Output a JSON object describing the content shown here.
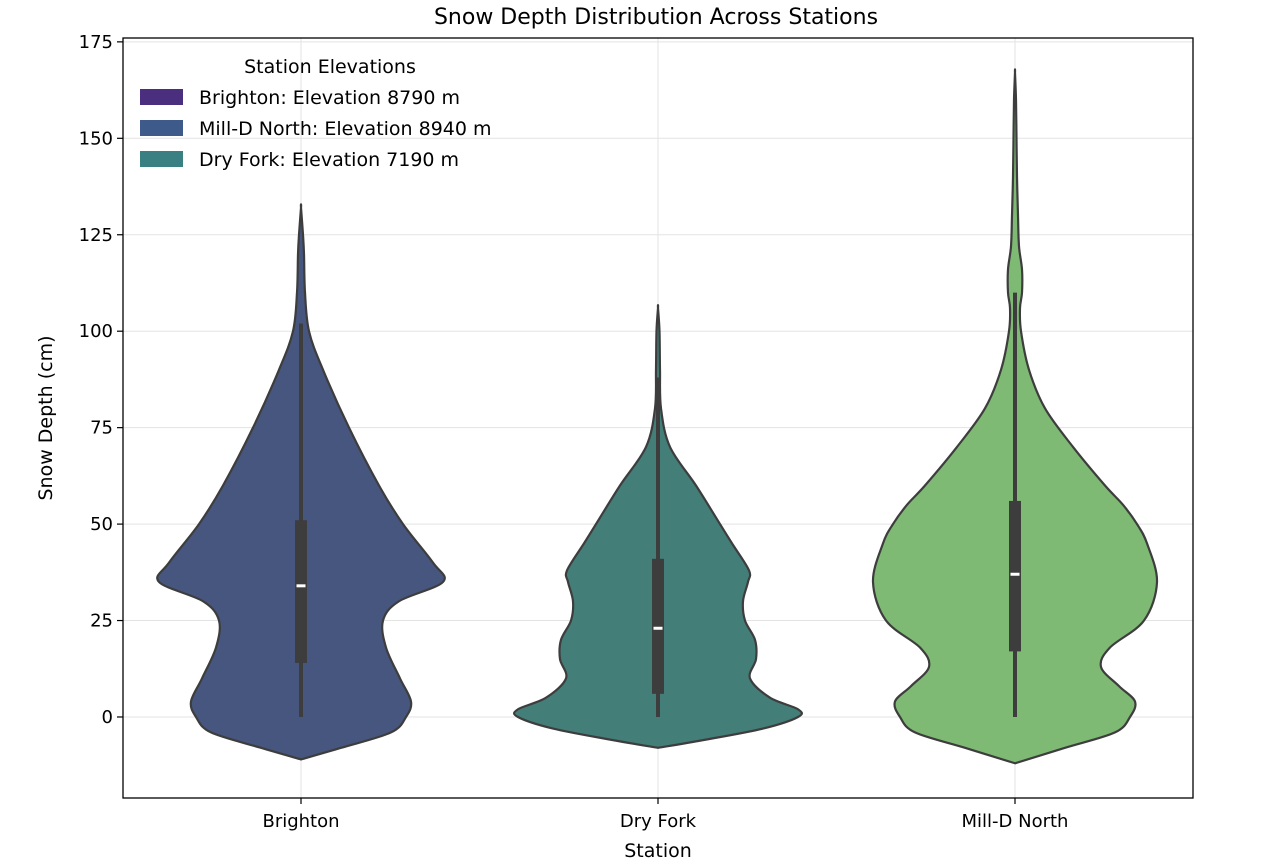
{
  "chart_data": {
    "type": "violin",
    "title": "Snow Depth Distribution Across Stations",
    "xlabel": "Station",
    "ylabel": "Snow Depth (cm)",
    "ylim": [
      -21,
      176
    ],
    "yticks": [
      0,
      25,
      50,
      75,
      100,
      125,
      150,
      175
    ],
    "grid": true,
    "categories": [
      "Brighton",
      "Dry Fork",
      "Mill-D North"
    ],
    "legend": {
      "title": "Station Elevations",
      "placement": "top-left",
      "entries": [
        {
          "label": "Brighton: Elevation 8790 m",
          "color": "#4a2f7f"
        },
        {
          "label": "Mill-D North: Elevation 8940 m",
          "color": "#3d5a8a"
        },
        {
          "label": "Dry Fork: Elevation 7190 m",
          "color": "#3a7f82"
        }
      ]
    },
    "series": [
      {
        "category": "Brighton",
        "color": "#47567e",
        "box": {
          "whisker_low": 0,
          "q1": 14,
          "median": 34,
          "q3": 51,
          "whisker_high": 102
        },
        "profile": [
          [
            -11,
            0
          ],
          [
            -8,
            40
          ],
          [
            -4,
            90
          ],
          [
            0,
            105
          ],
          [
            4,
            110
          ],
          [
            10,
            99
          ],
          [
            18,
            85
          ],
          [
            25,
            82
          ],
          [
            30,
            98
          ],
          [
            35,
            142
          ],
          [
            40,
            132
          ],
          [
            50,
            102
          ],
          [
            60,
            78
          ],
          [
            75,
            48
          ],
          [
            90,
            22
          ],
          [
            100,
            8
          ],
          [
            110,
            4
          ],
          [
            120,
            3
          ],
          [
            125,
            2
          ],
          [
            132,
            0
          ]
        ]
      },
      {
        "category": "Dry Fork",
        "color": "#437e79",
        "box": {
          "whisker_low": 0,
          "q1": 6,
          "median": 23,
          "q3": 41,
          "whisker_high": 88
        },
        "profile": [
          [
            -8,
            0
          ],
          [
            -6,
            45
          ],
          [
            -3,
            105
          ],
          [
            0,
            140
          ],
          [
            2,
            140
          ],
          [
            5,
            112
          ],
          [
            10,
            92
          ],
          [
            15,
            98
          ],
          [
            20,
            97
          ],
          [
            25,
            87
          ],
          [
            30,
            85
          ],
          [
            35,
            90
          ],
          [
            38,
            91
          ],
          [
            45,
            74
          ],
          [
            50,
            62
          ],
          [
            60,
            38
          ],
          [
            70,
            12
          ],
          [
            80,
            3
          ],
          [
            90,
            2
          ],
          [
            100,
            1.5
          ],
          [
            106,
            0
          ]
        ]
      },
      {
        "category": "Mill-D North",
        "color": "#7fba74",
        "box": {
          "whisker_low": 0,
          "q1": 17,
          "median": 37,
          "q3": 56,
          "whisker_high": 110
        },
        "profile": [
          [
            -12,
            0
          ],
          [
            -8,
            50
          ],
          [
            -4,
            100
          ],
          [
            0,
            115
          ],
          [
            4,
            120
          ],
          [
            8,
            104
          ],
          [
            13,
            86
          ],
          [
            18,
            95
          ],
          [
            25,
            129
          ],
          [
            35,
            142
          ],
          [
            45,
            132
          ],
          [
            50,
            122
          ],
          [
            55,
            108
          ],
          [
            60,
            90
          ],
          [
            70,
            58
          ],
          [
            80,
            30
          ],
          [
            90,
            14
          ],
          [
            100,
            6
          ],
          [
            106,
            5
          ],
          [
            110,
            7
          ],
          [
            116,
            7
          ],
          [
            122,
            4
          ],
          [
            130,
            3
          ],
          [
            140,
            2
          ],
          [
            150,
            1.5
          ],
          [
            160,
            1
          ],
          [
            167,
            0
          ]
        ]
      }
    ]
  }
}
